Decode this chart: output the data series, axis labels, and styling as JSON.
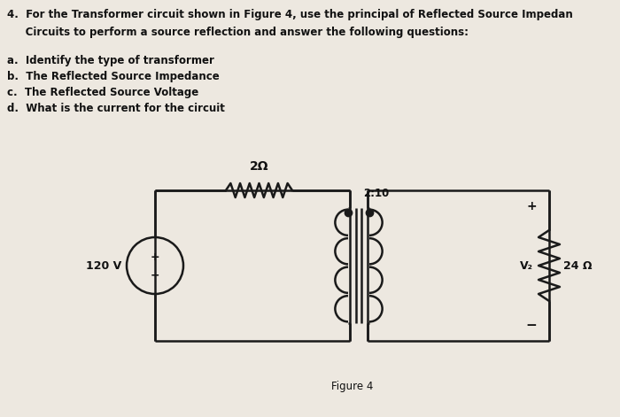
{
  "bg_color": "#ede8e0",
  "title_line1": "4.  For the Transformer circuit shown in Figure 4, use the principal of Reflected Source Impedan",
  "title_line2": "     Circuits to perform a source reflection and answer the following questions:",
  "items": [
    "a.  Identify the type of transformer",
    "b.  The Reflected Source Impedance",
    "c.  The Reflected Source Voltage",
    "d.  What is the current for the circuit"
  ],
  "figure_label": "Figure 4",
  "resistor_label_top": "2Ω",
  "transformer_ratio": "2:10",
  "source_voltage": "120 V",
  "load_resistor": "24 Ω",
  "v2_label": "V₂",
  "line_color": "#1a1a1a",
  "text_color": "#111111"
}
